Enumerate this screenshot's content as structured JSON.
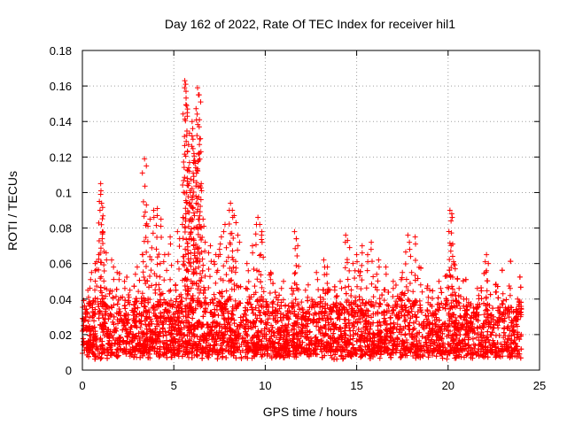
{
  "chart_data": {
    "type": "scatter",
    "title": "Day 162 of 2022, Rate Of TEC Index for receiver hil1",
    "xlabel": "GPS time / hours",
    "ylabel": "ROTI / TECUs",
    "xlim": [
      0,
      25
    ],
    "ylim": [
      0,
      0.18
    ],
    "x_ticks": [
      "0",
      "5",
      "10",
      "15",
      "20",
      "25"
    ],
    "y_ticks": [
      "0",
      "0.02",
      "0.04",
      "0.06",
      "0.08",
      "0.1",
      "0.12",
      "0.14",
      "0.16",
      "0.18"
    ],
    "grid": true,
    "marker": "+",
    "series_color": "#ff0000",
    "series": [
      {
        "name": "ROTI",
        "points": [
          [
            0.1,
            0.015
          ],
          [
            0.2,
            0.03
          ],
          [
            0.3,
            0.045
          ],
          [
            0.5,
            0.055
          ],
          [
            0.7,
            0.06
          ],
          [
            0.9,
            0.065
          ],
          [
            1.0,
            0.105
          ],
          [
            1.0,
            0.099
          ],
          [
            1.05,
            0.094
          ],
          [
            1.1,
            0.078
          ],
          [
            1.3,
            0.066
          ],
          [
            1.6,
            0.062
          ],
          [
            1.9,
            0.055
          ],
          [
            2.3,
            0.05
          ],
          [
            2.6,
            0.045
          ],
          [
            3.0,
            0.058
          ],
          [
            3.3,
            0.065
          ],
          [
            3.4,
            0.119
          ],
          [
            3.5,
            0.093
          ],
          [
            3.7,
            0.085
          ],
          [
            3.9,
            0.09
          ],
          [
            4.1,
            0.091
          ],
          [
            4.3,
            0.085
          ],
          [
            4.5,
            0.065
          ],
          [
            4.8,
            0.075
          ],
          [
            5.2,
            0.078
          ],
          [
            5.5,
            0.086
          ],
          [
            5.6,
            0.163
          ],
          [
            5.65,
            0.161
          ],
          [
            5.7,
            0.149
          ],
          [
            5.75,
            0.147
          ],
          [
            5.8,
            0.127
          ],
          [
            5.85,
            0.112
          ],
          [
            5.9,
            0.1
          ],
          [
            6.0,
            0.14
          ],
          [
            6.05,
            0.13
          ],
          [
            6.1,
            0.122
          ],
          [
            6.15,
            0.118
          ],
          [
            6.3,
            0.159
          ],
          [
            6.35,
            0.155
          ],
          [
            6.4,
            0.141
          ],
          [
            6.4,
            0.127
          ],
          [
            6.5,
            0.105
          ],
          [
            6.6,
            0.085
          ],
          [
            7.0,
            0.07
          ],
          [
            7.3,
            0.065
          ],
          [
            7.5,
            0.068
          ],
          [
            7.6,
            0.075
          ],
          [
            7.8,
            0.082
          ],
          [
            8.1,
            0.094
          ],
          [
            8.2,
            0.09
          ],
          [
            8.3,
            0.087
          ],
          [
            8.5,
            0.076
          ],
          [
            9.0,
            0.06
          ],
          [
            9.3,
            0.07
          ],
          [
            9.6,
            0.086
          ],
          [
            9.7,
            0.082
          ],
          [
            9.8,
            0.076
          ],
          [
            10.3,
            0.055
          ],
          [
            11.0,
            0.05
          ],
          [
            11.6,
            0.078
          ],
          [
            11.7,
            0.074
          ],
          [
            12.2,
            0.045
          ],
          [
            12.8,
            0.055
          ],
          [
            13.2,
            0.062
          ],
          [
            13.4,
            0.058
          ],
          [
            13.8,
            0.045
          ],
          [
            14.1,
            0.05
          ],
          [
            14.4,
            0.076
          ],
          [
            14.5,
            0.073
          ],
          [
            14.8,
            0.06
          ],
          [
            15.0,
            0.065
          ],
          [
            15.3,
            0.07
          ],
          [
            15.6,
            0.065
          ],
          [
            15.8,
            0.072
          ],
          [
            16.2,
            0.062
          ],
          [
            16.6,
            0.058
          ],
          [
            17.0,
            0.05
          ],
          [
            17.5,
            0.055
          ],
          [
            17.8,
            0.076
          ],
          [
            17.9,
            0.068
          ],
          [
            18.2,
            0.075
          ],
          [
            18.5,
            0.048
          ],
          [
            19.0,
            0.045
          ],
          [
            19.5,
            0.05
          ],
          [
            20.1,
            0.09
          ],
          [
            20.2,
            0.088
          ],
          [
            20.25,
            0.071
          ],
          [
            20.3,
            0.061
          ],
          [
            20.6,
            0.046
          ],
          [
            21.0,
            0.04
          ],
          [
            21.6,
            0.046
          ],
          [
            22.1,
            0.065
          ],
          [
            22.2,
            0.06
          ],
          [
            22.6,
            0.048
          ],
          [
            23.0,
            0.043
          ],
          [
            23.4,
            0.046
          ],
          [
            23.8,
            0.04
          ],
          [
            24.0,
            0.02
          ]
        ]
      }
    ],
    "note": "Dense band of roughly 6000 low ROTI values (about 0.005-0.045 TECU) covering 0-24 h forms the red background mass; representative peaks listed above."
  }
}
